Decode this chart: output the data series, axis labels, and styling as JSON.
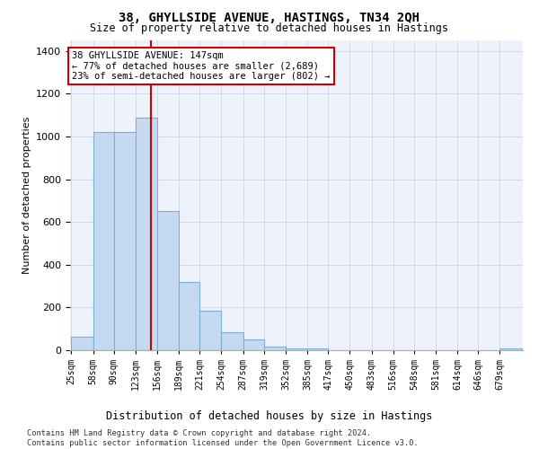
{
  "title": "38, GHYLLSIDE AVENUE, HASTINGS, TN34 2QH",
  "subtitle": "Size of property relative to detached houses in Hastings",
  "xlabel": "Distribution of detached houses by size in Hastings",
  "ylabel": "Number of detached properties",
  "bar_color": "#c5d9f0",
  "bar_edge_color": "#7bafd4",
  "property_line_color": "#cc0000",
  "property_value": 147,
  "annotation_text": "38 GHYLLSIDE AVENUE: 147sqm\n← 77% of detached houses are smaller (2,689)\n23% of semi-detached houses are larger (802) →",
  "annotation_box_color": "#ffffff",
  "annotation_box_edge_color": "#cc0000",
  "categories": [
    "25sqm",
    "58sqm",
    "90sqm",
    "123sqm",
    "156sqm",
    "189sqm",
    "221sqm",
    "254sqm",
    "287sqm",
    "319sqm",
    "352sqm",
    "385sqm",
    "417sqm",
    "450sqm",
    "483sqm",
    "516sqm",
    "548sqm",
    "581sqm",
    "614sqm",
    "646sqm",
    "679sqm"
  ],
  "bin_edges": [
    25,
    58,
    90,
    123,
    156,
    189,
    221,
    254,
    287,
    319,
    352,
    385,
    417,
    450,
    483,
    516,
    548,
    581,
    614,
    646,
    679,
    712
  ],
  "values": [
    65,
    1020,
    1020,
    1090,
    650,
    320,
    185,
    85,
    50,
    15,
    10,
    10,
    0,
    0,
    0,
    0,
    0,
    0,
    0,
    0,
    10
  ],
  "ylim": [
    0,
    1450
  ],
  "yticks": [
    0,
    200,
    400,
    600,
    800,
    1000,
    1200,
    1400
  ],
  "grid_color": "#d0daea",
  "background_color": "#eef2fa",
  "footnote": "Contains HM Land Registry data © Crown copyright and database right 2024.\nContains public sector information licensed under the Open Government Licence v3.0."
}
